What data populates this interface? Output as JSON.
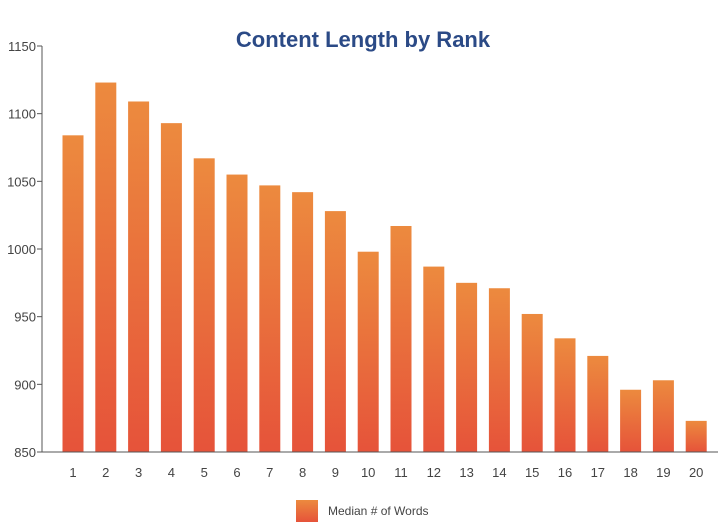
{
  "chart_data": {
    "type": "bar",
    "title": "Content Length by Rank",
    "xlabel": "",
    "ylabel": "",
    "categories": [
      "1",
      "2",
      "3",
      "4",
      "5",
      "6",
      "7",
      "8",
      "9",
      "10",
      "11",
      "12",
      "13",
      "14",
      "15",
      "16",
      "17",
      "18",
      "19",
      "20"
    ],
    "series": [
      {
        "name": "Median # of Words",
        "values": [
          1084,
          1123,
          1109,
          1093,
          1067,
          1055,
          1047,
          1042,
          1028,
          998,
          1017,
          987,
          975,
          971,
          952,
          934,
          921,
          896,
          903,
          873
        ]
      }
    ],
    "ylim": [
      850,
      1150
    ],
    "yticks": [
      850,
      900,
      950,
      1000,
      1050,
      1100,
      1150
    ],
    "grid": false,
    "legend_position": "bottom-center",
    "colors": {
      "bar_top": "#ec8a3e",
      "bar_bottom": "#e6533a",
      "title": "#2b4a86"
    }
  }
}
